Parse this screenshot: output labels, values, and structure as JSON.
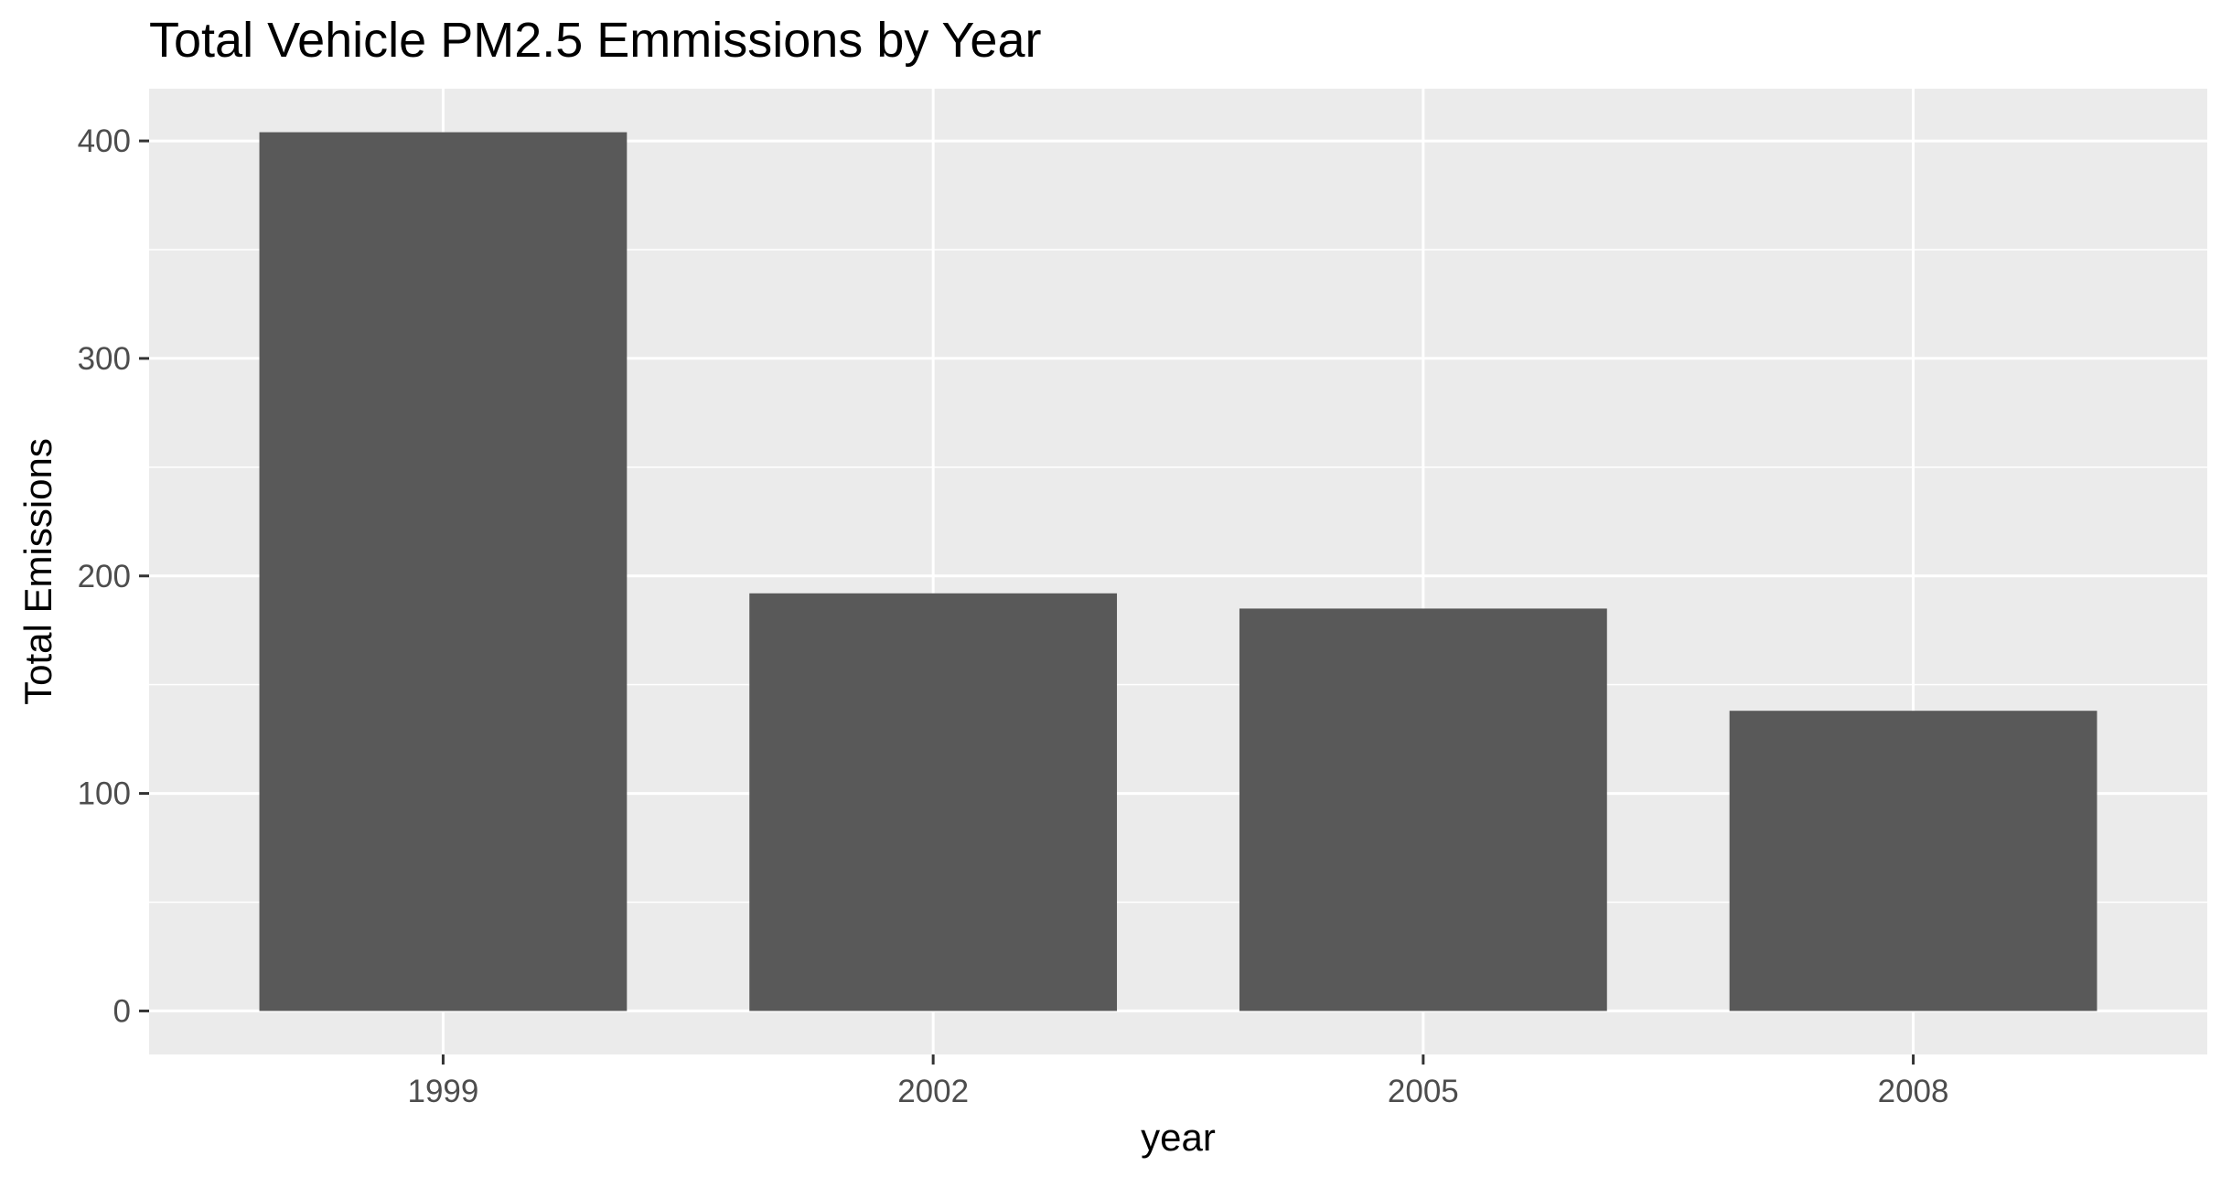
{
  "chart_data": {
    "type": "bar",
    "title": "Total Vehicle PM2.5 Emmissions by Year",
    "xlabel": "year",
    "ylabel": "Total Emissions",
    "categories": [
      "1999",
      "2002",
      "2005",
      "2008"
    ],
    "values": [
      404,
      192,
      185,
      138
    ],
    "ylim": [
      -20,
      424
    ],
    "yticks": [
      0,
      100,
      200,
      300,
      400
    ],
    "grid": true,
    "legend": "none",
    "colors": {
      "panel": "#ebebeb",
      "grid": "#ffffff",
      "bar": "#595959",
      "tick_label": "#4d4d4d",
      "tick": "#333333"
    }
  }
}
